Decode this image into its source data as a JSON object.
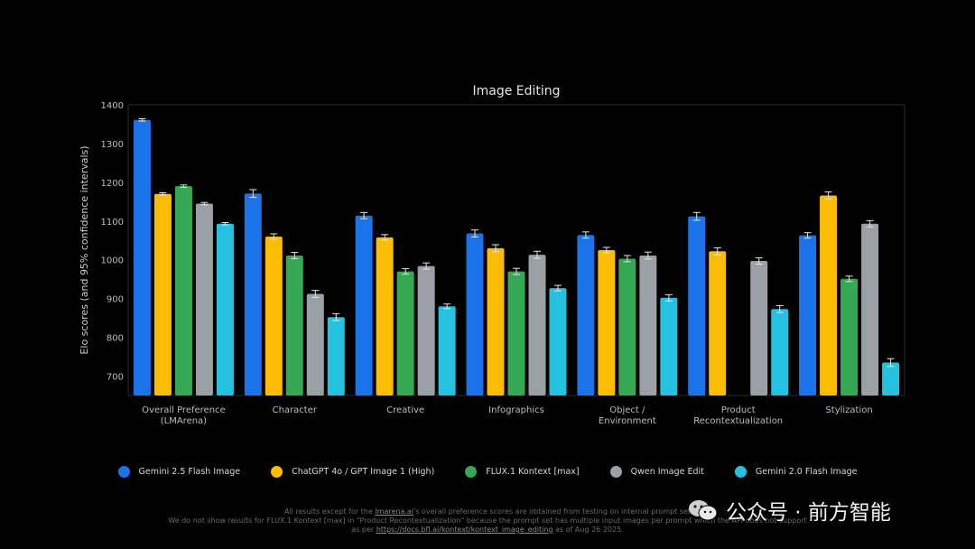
{
  "chart_data": {
    "type": "bar",
    "title": "Image Editing",
    "ylabel": "Elo scores (and 95% confidence intervals)",
    "xlabel": "",
    "ylim": [
      650,
      1400
    ],
    "yticks": [
      700,
      800,
      900,
      1000,
      1100,
      1200,
      1300,
      1400
    ],
    "grid": false,
    "legend_position": "bottom",
    "categories": [
      "Overall Preference\n(LMArena)",
      "Character",
      "Creative",
      "Infographics",
      "Object /\nEnvironment",
      "Product\nRecontextualization",
      "Stylization"
    ],
    "series": [
      {
        "name": "Gemini 2.5 Flash Image",
        "color": "#1a73e8",
        "values": [
          1361,
          1171,
          1114,
          1068,
          1064,
          1112,
          1063
        ],
        "errors": [
          3,
          10,
          8,
          9,
          8,
          10,
          7
        ]
      },
      {
        "name": "ChatGPT 4o / GPT Image 1 (High)",
        "color": "#fbbc04",
        "values": [
          1170,
          1060,
          1058,
          1030,
          1025,
          1022,
          1166
        ],
        "errors": [
          3,
          7,
          7,
          9,
          7,
          9,
          9
        ]
      },
      {
        "name": "FLUX.1 Kontext [max]",
        "color": "#34a853",
        "values": [
          1190,
          1011,
          970,
          970,
          1003,
          null,
          951
        ],
        "errors": [
          3,
          8,
          7,
          8,
          8,
          null,
          7
        ]
      },
      {
        "name": "Qwen Image Edit",
        "color": "#9aa0a6",
        "values": [
          1145,
          912,
          984,
          1013,
          1011,
          997,
          1093
        ],
        "errors": [
          3,
          9,
          8,
          9,
          9,
          8,
          8
        ]
      },
      {
        "name": "Gemini 2.0 Flash Image",
        "color": "#24c1e0",
        "values": [
          1093,
          852,
          880,
          927,
          902,
          873,
          735
        ],
        "errors": [
          3,
          9,
          6,
          7,
          8,
          9,
          10
        ]
      }
    ]
  },
  "footnote": {
    "line1_prefix": "All results except for the ",
    "line1_link": "lmarena.ai",
    "line1_suffix": "'s overall preference scores are obtained from testing on internal prompt set",
    "line2": "We do not show results for FLUX.1 Kontext [max] in \"Product Recontextualization\" because the prompt set has multiple input images per prompt which the API does not support",
    "line3_prefix": "as per ",
    "line3_link": "https://docs.bfl.ai/kontext/kontext_image_editing",
    "line3_suffix": " as of Aug 26 2025."
  },
  "watermark": {
    "text": "公众号 · 前方智能"
  }
}
